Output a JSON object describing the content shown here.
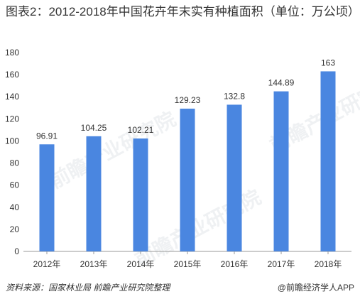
{
  "title": "图表2：2012-2018年中国花卉年末实有种植面积（单位：万公顷）",
  "source": "资料来源：国家林业局 前瞻产业研究院整理",
  "brand": "@前瞻经济学人APP",
  "watermark": "前瞻产业研究院",
  "colors": {
    "bar": "#4a86e0",
    "axis": "#9a9a9a",
    "text": "#333333"
  },
  "chart_data": {
    "type": "bar",
    "categories": [
      "2012年",
      "2013年",
      "2014年",
      "2015年",
      "2016年",
      "2017年",
      "2018年"
    ],
    "values": [
      96.91,
      104.25,
      102.21,
      129.23,
      132.8,
      144.89,
      163
    ],
    "data_labels": [
      "96.91",
      "104.25",
      "102.21",
      "129.23",
      "132.8",
      "144.89",
      "163"
    ],
    "ylim": [
      0,
      180
    ],
    "yticks": [
      0,
      20,
      40,
      60,
      80,
      100,
      120,
      140,
      160,
      180
    ],
    "grid": false,
    "legend": "none"
  }
}
